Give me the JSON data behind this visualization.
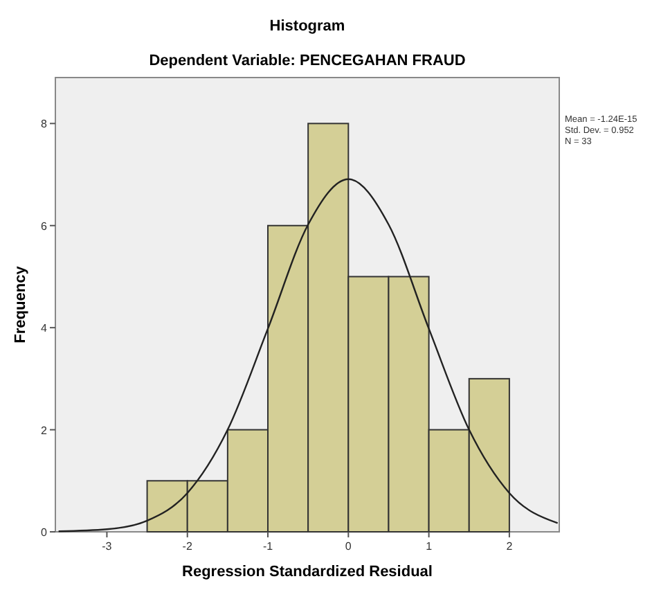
{
  "chart_data": {
    "type": "histogram",
    "title": "Histogram",
    "subtitle": "Dependent Variable: PENCEGAHAN FRAUD",
    "xlabel": "Regression Standardized Residual",
    "ylabel": "Frequency",
    "bins": [
      -2.5,
      -2,
      -1.5,
      -1,
      -0.5,
      0,
      0.5,
      1,
      1.5,
      2
    ],
    "values": [
      1,
      1,
      2,
      6,
      8,
      5,
      5,
      2,
      3
    ],
    "color": "#d4cf96",
    "series": [
      {
        "type": "line",
        "color": "#222222",
        "x": [
          -3.6,
          -3,
          -2.5,
          -2,
          -1.5,
          -1,
          -0.5,
          0,
          0.5,
          1,
          1.5,
          2,
          2.6
        ],
        "values": [
          0.01,
          0.05,
          0.22,
          0.76,
          2.0,
          3.98,
          6.02,
          6.91,
          6.02,
          3.98,
          2.0,
          0.76,
          0.17
        ]
      }
    ],
    "xlim": [
      -3.64,
      2.62
    ],
    "ylim": [
      0,
      8.9
    ],
    "xticks": [
      -3,
      -2,
      -1,
      0,
      1,
      2
    ],
    "yticks": [
      0,
      2,
      4,
      6,
      8
    ],
    "grid": false,
    "annotations": [
      "Mean = -1.24E-15",
      "Std. Dev. = 0.952",
      "N = 33"
    ]
  }
}
